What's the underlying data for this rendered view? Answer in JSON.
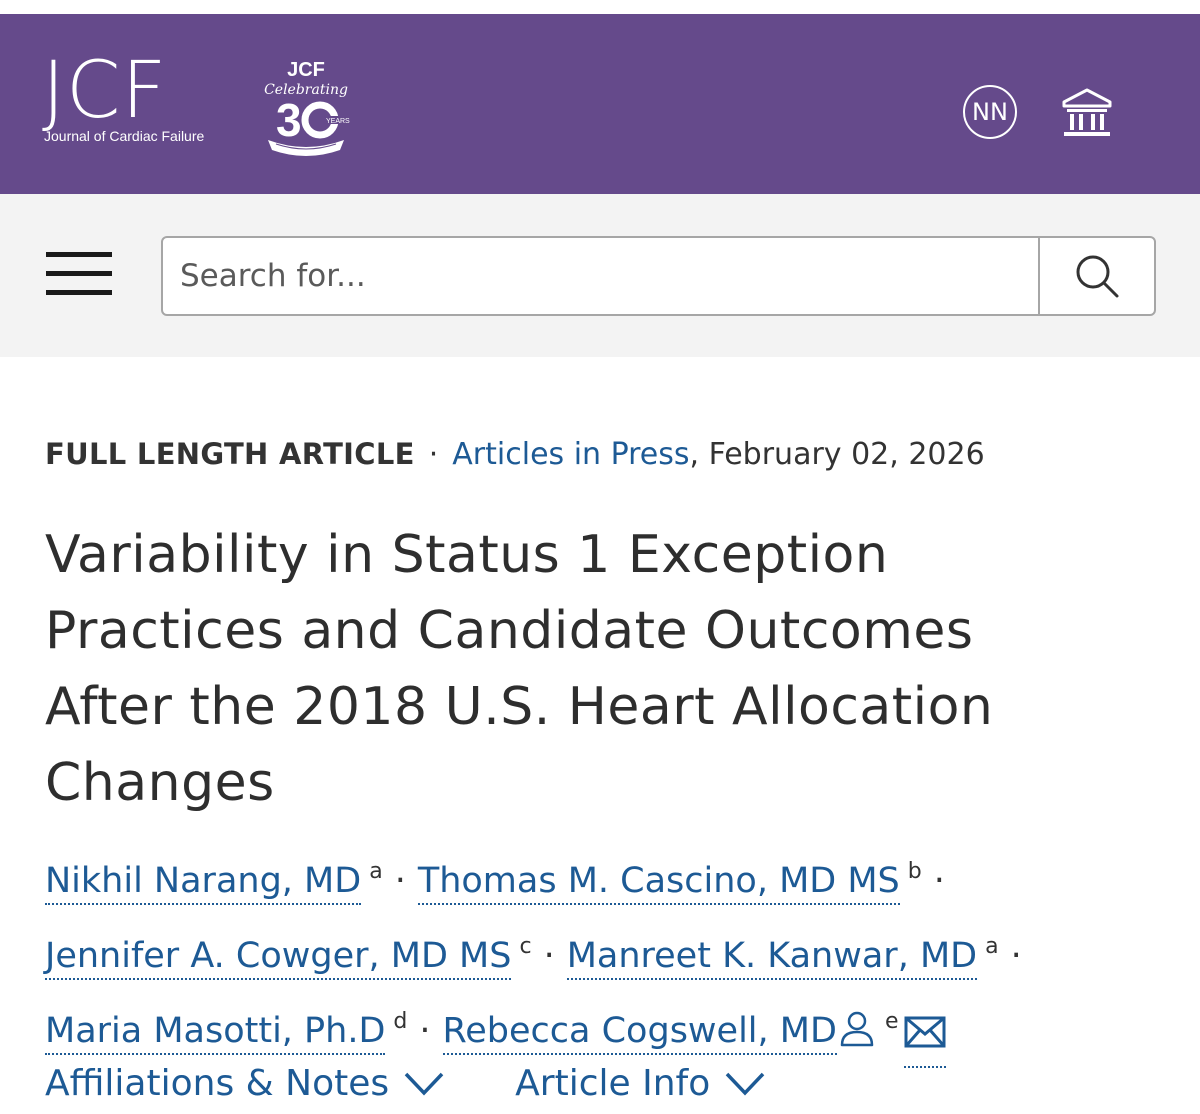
{
  "colors": {
    "brand": "#654a8b",
    "link": "#1d5a95",
    "text": "#333333"
  },
  "header": {
    "logo_main": "JCF",
    "logo_sub": "Journal of Cardiac Failure",
    "anniversary_badge": "JCF Celebrating 30 YEARS",
    "user_initials": "NN",
    "institution_icon": "institution-icon"
  },
  "search": {
    "placeholder": "Search for...",
    "value": "",
    "menu_icon": "hamburger-menu-icon",
    "search_icon": "search-icon"
  },
  "article": {
    "type": "FULL LENGTH ARTICLE",
    "separator": "·",
    "section_link": "Articles in Press",
    "date": ", February 02, 2026",
    "title": "Variability in Status 1 Exception Practices and Candidate Outcomes After the 2018 U.S. Heart Allocation Changes",
    "authors": [
      {
        "name": "Nikhil Narang, MD",
        "affil": "a"
      },
      {
        "name": "Thomas M. Cascino, MD MS",
        "affil": "b"
      },
      {
        "name": "Jennifer A. Cowger, MD MS",
        "affil": "c"
      },
      {
        "name": "Manreet K. Kanwar, MD",
        "affil": "a"
      },
      {
        "name": "Maria Masotti, Ph.D",
        "affil": "d"
      },
      {
        "name": "Rebecca Cogswell, MD",
        "affil": "e"
      }
    ],
    "author_separator": "·",
    "corresponding_icon": "person-icon",
    "email_icon": "mail-icon"
  },
  "tabs": [
    {
      "label": "Affiliations & Notes",
      "icon": "chevron-down-icon"
    },
    {
      "label": "Article Info",
      "icon": "chevron-down-icon"
    }
  ]
}
